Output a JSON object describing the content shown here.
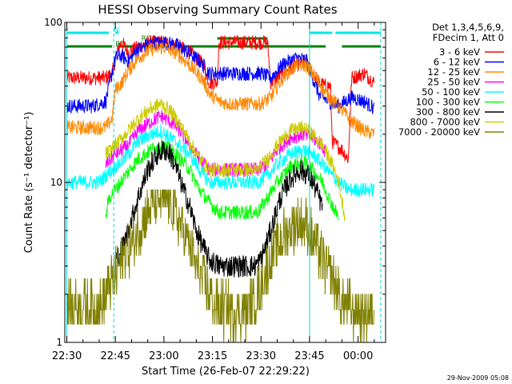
{
  "chart_data": {
    "type": "line",
    "title": "HESSI Observing Summary Count Rates",
    "xlabel": "Start Time (26-Feb-07 22:29:22)",
    "ylabel": "Count Rate (s⁻¹ detector⁻¹)",
    "footer": "29-Nov-2009 05:08",
    "y_scale": "log",
    "ylim": [
      1,
      100
    ],
    "xlim": [
      "22:29",
      "00:08"
    ],
    "x_unit": "minutes after 22:00",
    "x_tick_labels": [
      "22:30",
      "22:45",
      "23:00",
      "23:15",
      "23:30",
      "23:45",
      "00:00"
    ],
    "x_tick_minutes": [
      30,
      45,
      60,
      75,
      90,
      105,
      120
    ],
    "y_tick_labels": [
      "1",
      "10",
      "100"
    ],
    "y_tick_values": [
      1,
      10,
      100
    ],
    "legend_header": [
      "Det 1,3,4,5,6,9,",
      "FDecim 1, Att 0"
    ],
    "legend_position": "right",
    "flag_labels": [
      "N",
      "RD",
      "RD0"
    ],
    "colors": {
      "axes": "#000000",
      "night_flag": "#00e8e8",
      "saa_flag": "#008000",
      "vertical_markers": "#00d8d8"
    },
    "series": [
      {
        "name": "3 - 6 keV",
        "color": "#ff0000",
        "points": [
          [
            30,
            45
          ],
          [
            42,
            45
          ],
          [
            44,
            48
          ],
          [
            46,
            70
          ],
          [
            47,
            75
          ],
          [
            49,
            65
          ],
          [
            52,
            70
          ],
          [
            56,
            75
          ],
          [
            60,
            75
          ],
          [
            64,
            72
          ],
          [
            68,
            65
          ],
          [
            72,
            55
          ],
          [
            74,
            42
          ],
          [
            76.5,
            42
          ],
          [
            77,
            75
          ],
          [
            80,
            75
          ],
          [
            85,
            75
          ],
          [
            92,
            75
          ],
          [
            93,
            42
          ],
          [
            97,
            48
          ],
          [
            101,
            55
          ],
          [
            104,
            55
          ],
          [
            108,
            42
          ],
          [
            110,
            40
          ],
          [
            111.5,
            40
          ],
          [
            112,
            18
          ],
          [
            115,
            16
          ],
          [
            117,
            14
          ],
          [
            118,
            45
          ],
          [
            122,
            48
          ],
          [
            125,
            42
          ]
        ]
      },
      {
        "name": "6 - 12 keV",
        "color": "#0000ff",
        "points": [
          [
            30,
            30
          ],
          [
            38,
            30
          ],
          [
            42,
            32
          ],
          [
            45,
            60
          ],
          [
            47,
            62
          ],
          [
            49,
            57
          ],
          [
            52,
            68
          ],
          [
            56,
            74
          ],
          [
            60,
            75
          ],
          [
            64,
            72
          ],
          [
            68,
            64
          ],
          [
            72,
            55
          ],
          [
            74,
            48
          ],
          [
            77,
            48
          ],
          [
            80,
            48
          ],
          [
            85,
            48
          ],
          [
            90,
            48
          ],
          [
            93,
            45
          ],
          [
            97,
            55
          ],
          [
            101,
            60
          ],
          [
            104,
            58
          ],
          [
            108,
            35
          ],
          [
            111,
            32
          ],
          [
            114,
            30
          ],
          [
            118,
            34
          ],
          [
            122,
            32
          ],
          [
            125,
            29
          ]
        ]
      },
      {
        "name": "12 - 25 keV",
        "color": "#ff8800",
        "points": [
          [
            30,
            22
          ],
          [
            42,
            22
          ],
          [
            44,
            25
          ],
          [
            45,
            38
          ],
          [
            47,
            42
          ],
          [
            49,
            50
          ],
          [
            52,
            60
          ],
          [
            56,
            68
          ],
          [
            60,
            70
          ],
          [
            64,
            64
          ],
          [
            68,
            54
          ],
          [
            72,
            44
          ],
          [
            74,
            36
          ],
          [
            77,
            32
          ],
          [
            80,
            31
          ],
          [
            85,
            31
          ],
          [
            90,
            31
          ],
          [
            93,
            34
          ],
          [
            97,
            46
          ],
          [
            101,
            54
          ],
          [
            104,
            54
          ],
          [
            107,
            45
          ],
          [
            110,
            36
          ],
          [
            114,
            30
          ],
          [
            118,
            24
          ],
          [
            122,
            21
          ],
          [
            125,
            20
          ]
        ]
      },
      {
        "name": "25 - 50 keV",
        "color": "#ff00ff",
        "points": [
          [
            42,
            13
          ],
          [
            45,
            15
          ],
          [
            49,
            17
          ],
          [
            52,
            21
          ],
          [
            56,
            24
          ],
          [
            59,
            26
          ],
          [
            62,
            24
          ],
          [
            65,
            21
          ],
          [
            68,
            17
          ],
          [
            71,
            14
          ],
          [
            74,
            12
          ],
          [
            77,
            12
          ],
          [
            80,
            12
          ],
          [
            85,
            12
          ],
          [
            89,
            12
          ],
          [
            92,
            13
          ],
          [
            95,
            16
          ],
          [
            99,
            19
          ],
          [
            103,
            20
          ],
          [
            106,
            19
          ],
          [
            109,
            17
          ],
          [
            110,
            15
          ]
        ]
      },
      {
        "name": "50 - 100 keV",
        "color": "#00ffff",
        "points": [
          [
            30,
            10
          ],
          [
            35,
            10
          ],
          [
            40,
            10
          ],
          [
            42,
            11
          ],
          [
            44,
            12
          ],
          [
            46,
            13
          ],
          [
            49,
            15
          ],
          [
            52,
            18
          ],
          [
            56,
            20
          ],
          [
            59,
            21
          ],
          [
            62,
            19
          ],
          [
            65,
            17
          ],
          [
            68,
            15
          ],
          [
            71,
            12
          ],
          [
            74,
            10
          ],
          [
            77,
            10
          ],
          [
            80,
            10
          ],
          [
            85,
            10
          ],
          [
            89,
            10
          ],
          [
            92,
            11
          ],
          [
            95,
            13
          ],
          [
            99,
            15
          ],
          [
            103,
            16
          ],
          [
            106,
            15
          ],
          [
            109,
            13
          ],
          [
            112,
            11
          ],
          [
            114,
            10
          ],
          [
            117,
            9
          ],
          [
            121,
            9
          ],
          [
            125,
            9
          ]
        ]
      },
      {
        "name": "100 - 300 keV",
        "color": "#00ff00",
        "points": [
          [
            42,
            6
          ],
          [
            43,
            8
          ],
          [
            45,
            9
          ],
          [
            48,
            11
          ],
          [
            52,
            14
          ],
          [
            56,
            16
          ],
          [
            59,
            17
          ],
          [
            62,
            16
          ],
          [
            65,
            14
          ],
          [
            68,
            12
          ],
          [
            71,
            9
          ],
          [
            74,
            7.5
          ],
          [
            77,
            6.5
          ],
          [
            80,
            6.5
          ],
          [
            85,
            6.5
          ],
          [
            89,
            6.5
          ],
          [
            92,
            8
          ],
          [
            95,
            10
          ],
          [
            99,
            12.5
          ],
          [
            103,
            13.5
          ],
          [
            106,
            12
          ],
          [
            109,
            10
          ],
          [
            111,
            8
          ],
          [
            114,
            6
          ]
        ]
      },
      {
        "name": "300 - 800 keV",
        "color": "#000000",
        "points": [
          [
            45,
            3.3
          ],
          [
            47,
            3.8
          ],
          [
            49,
            5
          ],
          [
            52,
            8
          ],
          [
            55,
            12
          ],
          [
            58,
            15
          ],
          [
            60,
            16
          ],
          [
            62,
            15
          ],
          [
            64,
            12
          ],
          [
            66,
            9
          ],
          [
            68,
            7
          ],
          [
            70,
            5
          ],
          [
            72,
            4
          ],
          [
            74,
            3.3
          ],
          [
            77,
            3
          ],
          [
            80,
            3
          ],
          [
            85,
            3
          ],
          [
            88,
            3
          ],
          [
            90,
            3.3
          ],
          [
            93,
            5
          ],
          [
            96,
            8
          ],
          [
            99,
            10.5
          ],
          [
            102,
            12
          ],
          [
            105,
            11
          ],
          [
            107,
            9
          ],
          [
            109,
            7
          ]
        ]
      },
      {
        "name": "800 - 7000 keV",
        "color": "#cccc00",
        "points": [
          [
            42,
            15
          ],
          [
            45,
            17
          ],
          [
            49,
            21
          ],
          [
            52,
            25
          ],
          [
            56,
            29
          ],
          [
            59,
            31
          ],
          [
            62,
            28
          ],
          [
            65,
            23
          ],
          [
            68,
            18
          ],
          [
            71,
            14
          ],
          [
            74,
            12
          ],
          [
            77,
            12
          ],
          [
            80,
            12
          ],
          [
            85,
            12
          ],
          [
            89,
            12
          ],
          [
            92,
            14
          ],
          [
            95,
            17
          ],
          [
            99,
            21
          ],
          [
            103,
            22
          ],
          [
            106,
            20
          ],
          [
            109,
            17
          ],
          [
            112,
            13
          ],
          [
            114,
            10
          ],
          [
            116,
            6
          ]
        ]
      },
      {
        "name": "7000 - 20000 keV",
        "color": "#808000",
        "points": [
          [
            30,
            1.7
          ],
          [
            38,
            1.7
          ],
          [
            41,
            1.7
          ],
          [
            43,
            2.3
          ],
          [
            45,
            2.7
          ],
          [
            48,
            3.5
          ],
          [
            51,
            4.5
          ],
          [
            54,
            6
          ],
          [
            56,
            7
          ],
          [
            58,
            8
          ],
          [
            60,
            8
          ],
          [
            62,
            7.5
          ],
          [
            64,
            6
          ],
          [
            66,
            5
          ],
          [
            68,
            4
          ],
          [
            70,
            3
          ],
          [
            72,
            2.5
          ],
          [
            74,
            2
          ],
          [
            77,
            1.6
          ],
          [
            82,
            1.6
          ],
          [
            86,
            1.6
          ],
          [
            89,
            2
          ],
          [
            92,
            3
          ],
          [
            95,
            4
          ],
          [
            98,
            5
          ],
          [
            101,
            5.5
          ],
          [
            104,
            5.5
          ],
          [
            107,
            4
          ],
          [
            110,
            3
          ],
          [
            113,
            2.3
          ],
          [
            115,
            1.8
          ],
          [
            118,
            1.6
          ],
          [
            122,
            1.5
          ],
          [
            125,
            1.5
          ]
        ]
      }
    ]
  }
}
